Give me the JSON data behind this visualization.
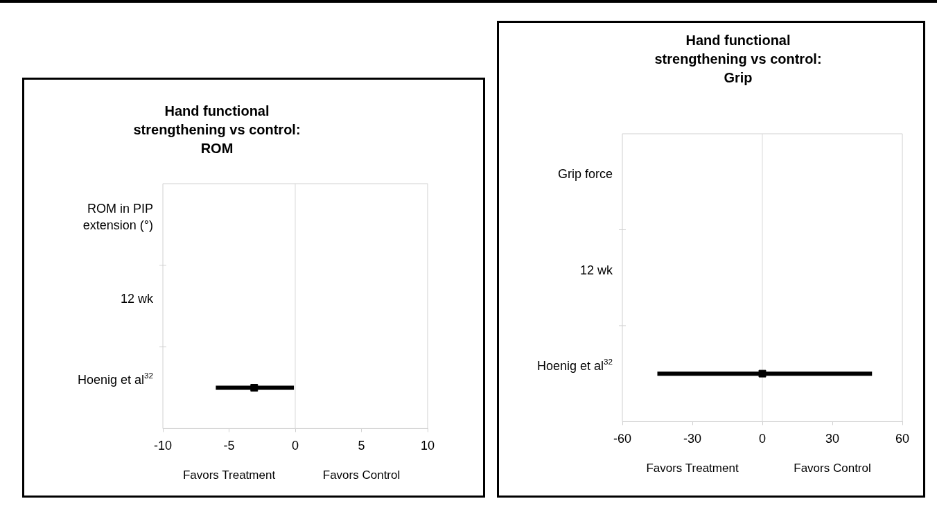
{
  "chart_data": [
    {
      "type": "scatter",
      "orientation": "horizontal",
      "title": "Hand functional strengthening vs control: ROM",
      "categories": [
        "ROM in PIP extension (°)",
        "12 wk",
        "Hoenig et al$^{32}$"
      ],
      "values": [
        null,
        null,
        -3.1
      ],
      "errors": [
        null,
        null,
        [
          -6.0,
          -0.1
        ]
      ],
      "color": "#000000",
      "marker": "square",
      "xlim": [
        -10,
        10
      ],
      "xticks": [
        -10,
        -5,
        0,
        5,
        10
      ],
      "ref_lines": [
        {
          "axis": "x",
          "value": 0,
          "color": "#d9d9d9"
        }
      ],
      "annotations": [
        "Favors Treatment",
        "Favors Control"
      ]
    },
    {
      "type": "scatter",
      "orientation": "horizontal",
      "title": "Hand functional strengthening vs control: Grip",
      "categories": [
        "Grip force",
        "12 wk",
        "Hoenig et al$^{32}$"
      ],
      "values": [
        null,
        null,
        0
      ],
      "errors": [
        null,
        null,
        [
          -45,
          47
        ]
      ],
      "color": "#000000",
      "marker": "square",
      "xlim": [
        -60,
        60
      ],
      "xticks": [
        -60,
        -30,
        0,
        30,
        60
      ],
      "ref_lines": [
        {
          "axis": "x",
          "value": 0,
          "color": "#d9d9d9"
        }
      ],
      "annotations": [
        "Favors Treatment",
        "Favors Control"
      ]
    }
  ]
}
